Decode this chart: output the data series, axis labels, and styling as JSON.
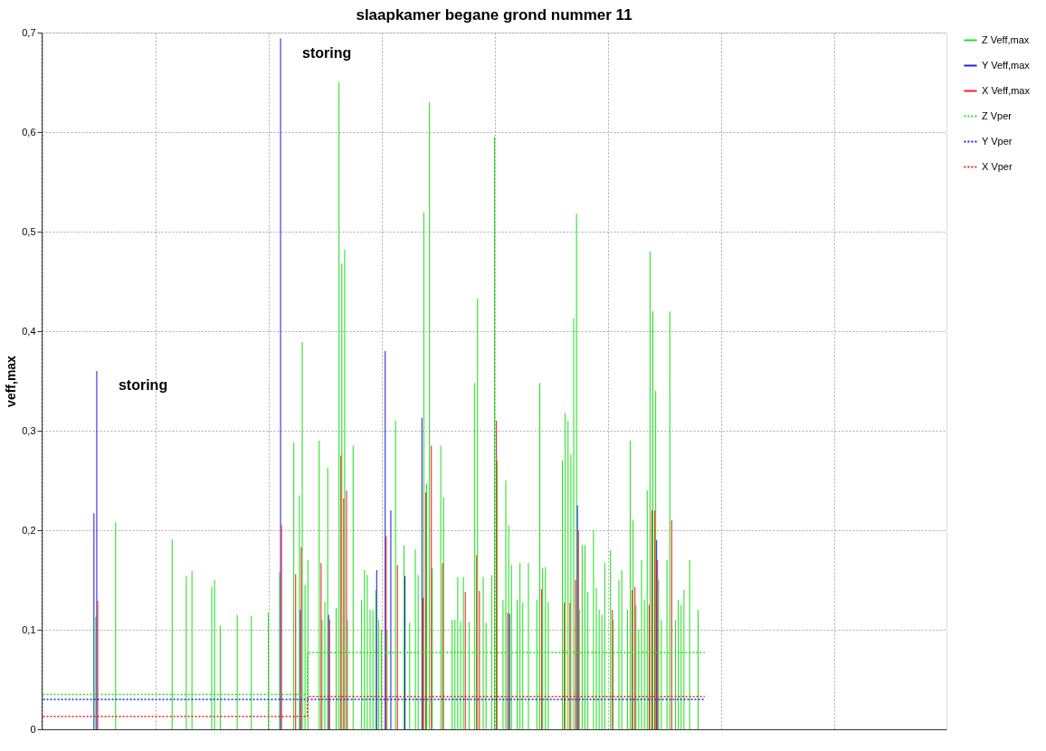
{
  "chart_data": {
    "type": "bar",
    "title": "slaapkamer begane grond nummer 11",
    "ylabel": "veff,max",
    "categories": [
      null,
      null,
      null,
      null,
      null,
      null,
      null,
      null,
      null,
      null,
      null,
      null,
      null,
      null,
      null,
      null,
      null,
      null,
      null,
      null,
      null,
      null,
      null,
      null,
      null,
      null,
      null,
      null,
      null,
      null,
      null,
      null,
      null,
      null,
      null,
      null,
      null,
      null,
      null,
      null,
      null,
      null,
      null,
      null,
      null,
      null,
      null,
      null,
      null,
      null,
      null,
      null,
      null,
      null,
      null,
      null,
      null,
      null,
      null,
      null,
      null,
      null,
      null,
      null,
      null,
      null,
      null,
      null,
      null,
      null,
      null,
      null,
      null,
      null,
      null,
      null,
      null,
      null,
      null,
      null,
      null,
      null,
      null,
      null,
      null,
      null,
      null,
      null,
      null,
      null,
      null,
      null,
      null,
      null,
      null,
      null,
      null,
      null,
      null,
      null,
      null,
      null,
      null,
      null,
      null,
      null,
      null,
      null,
      null,
      null,
      null,
      null,
      null,
      null,
      null,
      null,
      null,
      null,
      null,
      null,
      null,
      null,
      null,
      null,
      null,
      null,
      null,
      null,
      null,
      null,
      null,
      null,
      null,
      null,
      null,
      null,
      null,
      null,
      null,
      null,
      null,
      null,
      null,
      null,
      null,
      null,
      null,
      null,
      null,
      null,
      null,
      null,
      null,
      null,
      null,
      null,
      null,
      null,
      null,
      null,
      null,
      null,
      null,
      null,
      null,
      null,
      null,
      null,
      null,
      null,
      null,
      null,
      null,
      null,
      null,
      null,
      null,
      null,
      null,
      null,
      null,
      null,
      null,
      null,
      null,
      null,
      null,
      null,
      null,
      null,
      null,
      null,
      null,
      null,
      null,
      null,
      null,
      null,
      null,
      null,
      null,
      null,
      null,
      null,
      null,
      null,
      null,
      null,
      null,
      null,
      null,
      null,
      null,
      null,
      null,
      null,
      null,
      null,
      null,
      null,
      null,
      null,
      null,
      null,
      null,
      null,
      null,
      null,
      null,
      null,
      null,
      null,
      null,
      null,
      null,
      null,
      null,
      null,
      null,
      null,
      null,
      null,
      null,
      null,
      null,
      null,
      null,
      null,
      null,
      null,
      null,
      null,
      null,
      null,
      null,
      null,
      null,
      null,
      null,
      null,
      null,
      null,
      null,
      null,
      null,
      null,
      null,
      null,
      null,
      null,
      null,
      null,
      null,
      null,
      null,
      null,
      null,
      null,
      null,
      null,
      null,
      null,
      null,
      null,
      null,
      null,
      null,
      null,
      null,
      null,
      null,
      null,
      null,
      null,
      null,
      null,
      null,
      null,
      null,
      null,
      null,
      null,
      null,
      null,
      null,
      null,
      null,
      null,
      null,
      null,
      null,
      null,
      null,
      null,
      null,
      null,
      null,
      null,
      null,
      null
    ],
    "series": [
      {
        "name": "Z Veff,max",
        "color": "#22e022",
        "values": [
          null,
          null,
          null,
          null,
          null,
          null,
          null,
          null,
          null,
          null,
          null,
          null,
          null,
          null,
          null,
          null,
          null,
          null,
          null,
          0.113,
          null,
          null,
          null,
          null,
          null,
          null,
          0.208,
          null,
          null,
          null,
          null,
          null,
          null,
          null,
          null,
          null,
          null,
          null,
          null,
          null,
          null,
          null,
          null,
          null,
          null,
          null,
          0.191,
          null,
          null,
          null,
          null,
          0.154,
          null,
          0.159,
          null,
          null,
          null,
          null,
          null,
          null,
          0.143,
          0.15,
          null,
          0.104,
          null,
          null,
          null,
          null,
          null,
          0.115,
          null,
          null,
          null,
          null,
          0.114,
          null,
          null,
          null,
          null,
          null,
          0.117,
          null,
          null,
          null,
          0.158,
          null,
          null,
          null,
          null,
          0.288,
          null,
          0.235,
          0.389,
          0.145,
          0.17,
          null,
          null,
          null,
          0.29,
          0.11,
          0.128,
          0.263,
          null,
          null,
          0.122,
          0.65,
          0.468,
          0.482,
          0.11,
          null,
          0.285,
          null,
          null,
          0.13,
          0.16,
          0.155,
          0.12,
          0.12,
          0.14,
          0.11,
          0.1,
          null,
          0.1,
          null,
          null,
          0.31,
          null,
          null,
          0.185,
          null,
          0.107,
          null,
          0.181,
          0.155,
          null,
          0.519,
          0.247,
          0.63,
          0.162,
          null,
          null,
          0.285,
          0.233,
          null,
          null,
          0.11,
          0.11,
          0.153,
          0.108,
          0.153,
          null,
          0.108,
          null,
          0.348,
          0.433,
          null,
          0.153,
          0.107,
          null,
          0.155,
          0.595,
          0.27,
          null,
          0.13,
          0.25,
          0.205,
          0.165,
          null,
          0.13,
          0.167,
          0.127,
          null,
          0.167,
          null,
          null,
          0.13,
          0.348,
          0.162,
          0.163,
          0.128,
          null,
          null,
          null,
          null,
          0.27,
          0.318,
          0.31,
          0.276,
          0.413,
          0.518,
          0.12,
          0.185,
          0.185,
          0.138,
          null,
          0.2,
          0.142,
          0.12,
          0.115,
          0.167,
          null,
          0.18,
          0.11,
          null,
          0.15,
          0.16,
          null,
          0.12,
          0.29,
          0.21,
          0.125,
          0.1,
          0.17,
          0.13,
          0.24,
          0.48,
          0.42,
          0.34,
          0.15,
          0.11,
          null,
          0.17,
          0.42,
          null,
          0.11,
          0.13,
          0.125,
          0.14,
          null,
          0.17,
          null,
          null,
          0.12,
          null,
          null,
          null,
          null,
          null,
          null,
          null,
          null,
          null,
          null,
          null,
          null,
          null,
          null,
          null,
          null,
          null,
          null,
          null,
          null,
          null,
          null,
          null,
          null,
          null,
          null,
          null,
          null,
          null,
          null,
          null,
          null,
          null,
          null,
          null,
          null,
          null,
          null,
          null,
          null,
          null,
          null,
          null,
          null,
          null,
          null,
          null,
          null,
          null,
          null,
          null,
          null,
          null,
          null,
          null,
          null,
          null,
          null,
          null,
          null,
          null,
          null,
          null,
          null,
          null,
          null,
          null,
          null,
          null,
          null,
          null,
          null,
          null,
          null,
          null,
          null,
          null,
          null,
          null,
          null,
          null,
          null,
          null,
          null,
          null,
          null,
          null
        ]
      },
      {
        "name": "Y Veff,max",
        "color": "#2222dd",
        "values": [
          null,
          null,
          null,
          null,
          null,
          null,
          null,
          null,
          null,
          null,
          null,
          null,
          null,
          null,
          null,
          null,
          null,
          null,
          0.217,
          0.36,
          null,
          null,
          null,
          null,
          null,
          null,
          null,
          null,
          null,
          null,
          null,
          null,
          null,
          null,
          null,
          null,
          null,
          null,
          null,
          null,
          null,
          null,
          null,
          null,
          null,
          null,
          null,
          null,
          null,
          null,
          null,
          null,
          null,
          null,
          null,
          null,
          null,
          null,
          null,
          null,
          null,
          null,
          null,
          null,
          null,
          null,
          null,
          null,
          null,
          null,
          null,
          null,
          null,
          null,
          null,
          null,
          null,
          null,
          null,
          null,
          null,
          null,
          null,
          null,
          0.694,
          null,
          null,
          null,
          null,
          null,
          null,
          0.12,
          null,
          null,
          null,
          null,
          null,
          null,
          null,
          null,
          null,
          0.115,
          null,
          null,
          null,
          null,
          null,
          null,
          null,
          null,
          null,
          null,
          null,
          null,
          null,
          null,
          null,
          null,
          0.16,
          null,
          null,
          0.38,
          null,
          0.22,
          null,
          null,
          null,
          null,
          0.154,
          null,
          null,
          null,
          null,
          null,
          0.313,
          null,
          null,
          null,
          null,
          null,
          null,
          null,
          null,
          null,
          null,
          null,
          null,
          null,
          null,
          null,
          null,
          null,
          null,
          null,
          null,
          null,
          null,
          null,
          null,
          null,
          null,
          null,
          null,
          null,
          null,
          0.116,
          null,
          null,
          null,
          null,
          null,
          null,
          null,
          null,
          null,
          null,
          null,
          null,
          null,
          null,
          null,
          null,
          null,
          null,
          null,
          null,
          null,
          null,
          null,
          0.225,
          null,
          null,
          null,
          null,
          null,
          null,
          null,
          null,
          null,
          null,
          null,
          null,
          null,
          null,
          null,
          null,
          null,
          null,
          null,
          null,
          null,
          null,
          null,
          null,
          null,
          null,
          null,
          0.19,
          null,
          null,
          null,
          null,
          null,
          null,
          null,
          null,
          null,
          null,
          null,
          null,
          null,
          null,
          null,
          null,
          null,
          null,
          null,
          null,
          null,
          null,
          null,
          null,
          null,
          null,
          null,
          null,
          null,
          null,
          null,
          null,
          null,
          null,
          null,
          null,
          null,
          null,
          null,
          null,
          null,
          null,
          null,
          null,
          null,
          null,
          null,
          null,
          null,
          null,
          null,
          null,
          null,
          null,
          null,
          null,
          null,
          null,
          null,
          null,
          null,
          null,
          null,
          null,
          null,
          null,
          null,
          null,
          null,
          null,
          null,
          null,
          null,
          null,
          null,
          null,
          null,
          null,
          null,
          null,
          null,
          null,
          null,
          null,
          null,
          null,
          null,
          null,
          null,
          null,
          null,
          null,
          null,
          null,
          null,
          null,
          null,
          null,
          null,
          null,
          null,
          null
        ]
      },
      {
        "name": "X Veff,max",
        "color": "#ee2222",
        "values": [
          null,
          null,
          null,
          null,
          null,
          null,
          null,
          null,
          null,
          null,
          null,
          null,
          null,
          null,
          null,
          null,
          null,
          null,
          null,
          0.129,
          null,
          null,
          null,
          null,
          null,
          null,
          null,
          null,
          null,
          null,
          null,
          null,
          null,
          null,
          null,
          null,
          null,
          null,
          null,
          null,
          null,
          null,
          null,
          null,
          null,
          null,
          null,
          null,
          null,
          null,
          null,
          null,
          null,
          null,
          null,
          null,
          null,
          null,
          null,
          null,
          null,
          null,
          null,
          null,
          null,
          null,
          null,
          null,
          null,
          null,
          null,
          null,
          null,
          null,
          null,
          null,
          null,
          null,
          null,
          null,
          null,
          null,
          null,
          null,
          0.205,
          null,
          null,
          null,
          null,
          0.156,
          null,
          0.183,
          null,
          null,
          null,
          null,
          null,
          null,
          0.167,
          null,
          null,
          0.11,
          null,
          null,
          null,
          0.275,
          0.232,
          0.24,
          null,
          null,
          null,
          null,
          null,
          null,
          null,
          null,
          null,
          null,
          null,
          null,
          null,
          0.194,
          null,
          null,
          null,
          0.165,
          null,
          null,
          null,
          null,
          null,
          null,
          null,
          null,
          0.132,
          0.238,
          null,
          0.285,
          null,
          null,
          null,
          0.167,
          null,
          null,
          null,
          null,
          null,
          null,
          null,
          0.138,
          null,
          null,
          null,
          0.175,
          0.139,
          null,
          null,
          null,
          null,
          null,
          0.31,
          null,
          null,
          null,
          0.117,
          null,
          null,
          null,
          null,
          null,
          null,
          null,
          null,
          null,
          null,
          null,
          0.141,
          null,
          null,
          null,
          null,
          null,
          null,
          null,
          0.127,
          null,
          0.127,
          null,
          0.15,
          0.2,
          null,
          null,
          null,
          null,
          null,
          null,
          null,
          null,
          null,
          null,
          null,
          0.12,
          null,
          null,
          null,
          null,
          null,
          null,
          0.14,
          0.143,
          null,
          null,
          null,
          null,
          0.125,
          0.22,
          0.22,
          0.17,
          null,
          null,
          null,
          null,
          0.21,
          null,
          null,
          null,
          null,
          null,
          null,
          null,
          null,
          null,
          null,
          null,
          null,
          null,
          null,
          null,
          null,
          null,
          null,
          null,
          null,
          null,
          null,
          null,
          null,
          null,
          null,
          null,
          null,
          null,
          null,
          null,
          null,
          null,
          null,
          null,
          null,
          null,
          null,
          null,
          null,
          null,
          null,
          null,
          null,
          null,
          null,
          null,
          null,
          null,
          null,
          null,
          null,
          null,
          null,
          null,
          null,
          null,
          null,
          null,
          null,
          null,
          null,
          null,
          null,
          null,
          null,
          null,
          null,
          null,
          null,
          null,
          null,
          null,
          null,
          null,
          null,
          null,
          null,
          null,
          null,
          null,
          null,
          null,
          null,
          null,
          null,
          null,
          null,
          null,
          null,
          null,
          null,
          null,
          null,
          null,
          null,
          null
        ]
      },
      {
        "name": "Z Vper",
        "color": "#22e022",
        "type": "step",
        "line_style": "dotted",
        "values": [
          0.035,
          0.035,
          0.035,
          0.035,
          0.035,
          0.035,
          0.035,
          0.035,
          0.035,
          0.035,
          0.035,
          0.035,
          0.035,
          0.035,
          0.035,
          0.035,
          0.035,
          0.035,
          0.035,
          0.035,
          0.035,
          0.035,
          0.035,
          0.035,
          0.035,
          0.035,
          0.035,
          0.035,
          0.035,
          0.035,
          0.035,
          0.035,
          0.035,
          0.035,
          0.035,
          0.035,
          0.035,
          0.035,
          0.035,
          0.035,
          0.035,
          0.035,
          0.035,
          0.035,
          0.035,
          0.035,
          0.035,
          0.035,
          0.035,
          0.035,
          0.035,
          0.035,
          0.035,
          0.035,
          0.035,
          0.035,
          0.035,
          0.035,
          0.035,
          0.035,
          0.035,
          0.035,
          0.035,
          0.035,
          0.035,
          0.035,
          0.035,
          0.035,
          0.035,
          0.035,
          0.035,
          0.035,
          0.035,
          0.035,
          0.035,
          0.035,
          0.035,
          0.035,
          0.035,
          0.035,
          0.035,
          0.035,
          0.035,
          0.035,
          0.035,
          0.035,
          0.035,
          0.035,
          0.035,
          0.035,
          0.035,
          0.035,
          0.035,
          0.035,
          0.077,
          0.077,
          0.077,
          0.077,
          0.077,
          0.077,
          0.077,
          0.077,
          0.077,
          0.077,
          0.077,
          0.077,
          0.077,
          0.077,
          0.077,
          0.077,
          0.077,
          0.077,
          0.077,
          0.077,
          0.077,
          0.077,
          0.077,
          0.077,
          0.077,
          0.077,
          0.077,
          0.077,
          0.077,
          0.077,
          0.077,
          0.077,
          0.077,
          0.077,
          0.077,
          0.077,
          0.077,
          0.077,
          0.077,
          0.077,
          0.077,
          0.077,
          0.077,
          0.077,
          0.077,
          0.077,
          0.077,
          0.077,
          0.077,
          0.077,
          0.077,
          0.077,
          0.077,
          0.077,
          0.077,
          0.077,
          0.077,
          0.077,
          0.077,
          0.077,
          0.077,
          0.077,
          0.077,
          0.077,
          0.077,
          0.077,
          0.077,
          0.077,
          0.077,
          0.077,
          0.077,
          0.077,
          0.077,
          0.077,
          0.077,
          0.077,
          0.077,
          0.077,
          0.077,
          0.077,
          0.077,
          0.077,
          0.077,
          0.077,
          0.077,
          0.077,
          0.077,
          0.077,
          0.077,
          0.077,
          0.077,
          0.077,
          0.077,
          0.077,
          0.077,
          0.077,
          0.077,
          0.077,
          0.077,
          0.077,
          0.077,
          0.077,
          0.077,
          0.077,
          0.077,
          0.077,
          0.077,
          0.077,
          0.077,
          0.077,
          0.077,
          0.077,
          0.077,
          0.077,
          0.077,
          0.077,
          0.077,
          0.077,
          0.077,
          0.077,
          0.077,
          0.077,
          0.077,
          0.077,
          0.077,
          0.077,
          0.077,
          0.077,
          0.077,
          0.077,
          0.077,
          0.077,
          0.077,
          0.077,
          0.077,
          0.077,
          0.077,
          0.077,
          0.077,
          0.077,
          0.077,
          null,
          null,
          null,
          null,
          null,
          null,
          null,
          null,
          null,
          null,
          null,
          null,
          null,
          null,
          null,
          null,
          null,
          null,
          null,
          null,
          null,
          null,
          null,
          null,
          null,
          null,
          null,
          null,
          null,
          null,
          null,
          null,
          null,
          null,
          null,
          null,
          null,
          null,
          null,
          null,
          null,
          null,
          null,
          null,
          null,
          null,
          null,
          null,
          null,
          null,
          null,
          null,
          null,
          null,
          null,
          null,
          null,
          null,
          null,
          null,
          null,
          null,
          null,
          null,
          null,
          null,
          null,
          null,
          null,
          null,
          null,
          null,
          null,
          null,
          null,
          null,
          null,
          null,
          null,
          null,
          null,
          null,
          null,
          null,
          null
        ]
      },
      {
        "name": "Y Vper",
        "color": "#2222dd",
        "type": "step",
        "line_style": "dotted",
        "values": [
          0.03,
          0.03,
          0.03,
          0.03,
          0.03,
          0.03,
          0.03,
          0.03,
          0.03,
          0.03,
          0.03,
          0.03,
          0.03,
          0.03,
          0.03,
          0.03,
          0.03,
          0.03,
          0.03,
          0.03,
          0.03,
          0.03,
          0.03,
          0.03,
          0.03,
          0.03,
          0.03,
          0.03,
          0.03,
          0.03,
          0.03,
          0.03,
          0.03,
          0.03,
          0.03,
          0.03,
          0.03,
          0.03,
          0.03,
          0.03,
          0.03,
          0.03,
          0.03,
          0.03,
          0.03,
          0.03,
          0.03,
          0.03,
          0.03,
          0.03,
          0.03,
          0.03,
          0.03,
          0.03,
          0.03,
          0.03,
          0.03,
          0.03,
          0.03,
          0.03,
          0.03,
          0.03,
          0.03,
          0.03,
          0.03,
          0.03,
          0.03,
          0.03,
          0.03,
          0.03,
          0.03,
          0.03,
          0.03,
          0.03,
          0.03,
          0.03,
          0.03,
          0.03,
          0.03,
          0.03,
          0.03,
          0.03,
          0.03,
          0.03,
          0.03,
          0.03,
          0.03,
          0.03,
          0.03,
          0.03,
          0.03,
          0.03,
          0.03,
          0.03,
          0.03,
          0.03,
          0.03,
          0.03,
          0.03,
          0.03,
          0.03,
          0.03,
          0.03,
          0.03,
          0.03,
          0.03,
          0.03,
          0.03,
          0.03,
          0.03,
          0.03,
          0.03,
          0.03,
          0.03,
          0.03,
          0.03,
          0.03,
          0.03,
          0.03,
          0.03,
          0.03,
          0.03,
          0.03,
          0.03,
          0.03,
          0.03,
          0.03,
          0.03,
          0.03,
          0.03,
          0.03,
          0.03,
          0.03,
          0.03,
          0.03,
          0.03,
          0.03,
          0.03,
          0.03,
          0.03,
          0.03,
          0.03,
          0.03,
          0.03,
          0.03,
          0.03,
          0.03,
          0.03,
          0.03,
          0.03,
          0.03,
          0.03,
          0.03,
          0.03,
          0.03,
          0.03,
          0.03,
          0.03,
          0.03,
          0.03,
          0.03,
          0.03,
          0.03,
          0.03,
          0.03,
          0.03,
          0.03,
          0.03,
          0.03,
          0.03,
          0.03,
          0.03,
          0.03,
          0.03,
          0.03,
          0.03,
          0.03,
          0.03,
          0.03,
          0.03,
          0.03,
          0.03,
          0.03,
          0.03,
          0.03,
          0.03,
          0.03,
          0.03,
          0.03,
          0.03,
          0.03,
          0.03,
          0.03,
          0.03,
          0.03,
          0.03,
          0.03,
          0.03,
          0.03,
          0.03,
          0.03,
          0.03,
          0.03,
          0.03,
          0.03,
          0.03,
          0.03,
          0.03,
          0.03,
          0.03,
          0.03,
          0.03,
          0.03,
          0.03,
          0.03,
          0.03,
          0.03,
          0.03,
          0.03,
          0.03,
          0.03,
          0.03,
          0.03,
          0.03,
          0.03,
          0.03,
          0.03,
          0.03,
          0.03,
          0.03,
          0.03,
          0.03,
          0.03,
          0.03,
          0.03,
          null,
          null,
          null,
          null,
          null,
          null,
          null,
          null,
          null,
          null,
          null,
          null,
          null,
          null,
          null,
          null,
          null,
          null,
          null,
          null,
          null,
          null,
          null,
          null,
          null,
          null,
          null,
          null,
          null,
          null,
          null,
          null,
          null,
          null,
          null,
          null,
          null,
          null,
          null,
          null,
          null,
          null,
          null,
          null,
          null,
          null,
          null,
          null,
          null,
          null,
          null,
          null,
          null,
          null,
          null,
          null,
          null,
          null,
          null,
          null,
          null,
          null,
          null,
          null,
          null,
          null,
          null,
          null,
          null,
          null,
          null,
          null,
          null,
          null,
          null,
          null,
          null,
          null,
          null,
          null,
          null,
          null,
          null,
          null,
          null
        ]
      },
      {
        "name": "X Vper",
        "color": "#ee2222",
        "type": "step",
        "line_style": "dotted",
        "values": [
          0.013,
          0.013,
          0.013,
          0.013,
          0.013,
          0.013,
          0.013,
          0.013,
          0.013,
          0.013,
          0.013,
          0.013,
          0.013,
          0.013,
          0.013,
          0.013,
          0.013,
          0.013,
          0.013,
          0.013,
          0.013,
          0.013,
          0.013,
          0.013,
          0.013,
          0.013,
          0.013,
          0.013,
          0.013,
          0.013,
          0.013,
          0.013,
          0.013,
          0.013,
          0.013,
          0.013,
          0.013,
          0.013,
          0.013,
          0.013,
          0.013,
          0.013,
          0.013,
          0.013,
          0.013,
          0.013,
          0.013,
          0.013,
          0.013,
          0.013,
          0.013,
          0.013,
          0.013,
          0.013,
          0.013,
          0.013,
          0.013,
          0.013,
          0.013,
          0.013,
          0.013,
          0.013,
          0.013,
          0.013,
          0.013,
          0.013,
          0.013,
          0.013,
          0.013,
          0.013,
          0.013,
          0.013,
          0.013,
          0.013,
          0.013,
          0.013,
          0.013,
          0.013,
          0.013,
          0.013,
          0.013,
          0.013,
          0.013,
          0.013,
          0.013,
          0.013,
          0.013,
          0.013,
          0.013,
          0.013,
          0.013,
          0.013,
          0.013,
          0.013,
          0.033,
          0.033,
          0.033,
          0.033,
          0.033,
          0.033,
          0.033,
          0.033,
          0.033,
          0.033,
          0.033,
          0.033,
          0.033,
          0.033,
          0.033,
          0.033,
          0.033,
          0.033,
          0.033,
          0.033,
          0.033,
          0.033,
          0.033,
          0.033,
          0.033,
          0.033,
          0.033,
          0.033,
          0.033,
          0.033,
          0.033,
          0.033,
          0.033,
          0.033,
          0.033,
          0.033,
          0.033,
          0.033,
          0.033,
          0.033,
          0.033,
          0.033,
          0.033,
          0.033,
          0.033,
          0.033,
          0.033,
          0.033,
          0.033,
          0.033,
          0.033,
          0.033,
          0.033,
          0.033,
          0.033,
          0.033,
          0.033,
          0.033,
          0.033,
          0.033,
          0.033,
          0.033,
          0.033,
          0.033,
          0.033,
          0.033,
          0.033,
          0.033,
          0.033,
          0.033,
          0.033,
          0.033,
          0.033,
          0.033,
          0.033,
          0.033,
          0.033,
          0.033,
          0.033,
          0.033,
          0.033,
          0.033,
          0.033,
          0.033,
          0.033,
          0.033,
          0.033,
          0.033,
          0.033,
          0.033,
          0.033,
          0.033,
          0.033,
          0.033,
          0.033,
          0.033,
          0.033,
          0.033,
          0.033,
          0.033,
          0.033,
          0.033,
          0.033,
          0.033,
          0.033,
          0.033,
          0.033,
          0.033,
          0.033,
          0.033,
          0.033,
          0.033,
          0.033,
          0.033,
          0.033,
          0.033,
          0.033,
          0.033,
          0.033,
          0.033,
          0.033,
          0.033,
          0.033,
          0.033,
          0.033,
          0.033,
          0.033,
          0.033,
          0.033,
          0.033,
          0.033,
          0.033,
          0.033,
          0.033,
          0.033,
          0.033,
          0.033,
          0.033,
          0.033,
          0.033,
          0.033,
          null,
          null,
          null,
          null,
          null,
          null,
          null,
          null,
          null,
          null,
          null,
          null,
          null,
          null,
          null,
          null,
          null,
          null,
          null,
          null,
          null,
          null,
          null,
          null,
          null,
          null,
          null,
          null,
          null,
          null,
          null,
          null,
          null,
          null,
          null,
          null,
          null,
          null,
          null,
          null,
          null,
          null,
          null,
          null,
          null,
          null,
          null,
          null,
          null,
          null,
          null,
          null,
          null,
          null,
          null,
          null,
          null,
          null,
          null,
          null,
          null,
          null,
          null,
          null,
          null,
          null,
          null,
          null,
          null,
          null,
          null,
          null,
          null,
          null,
          null,
          null,
          null,
          null,
          null,
          null,
          null,
          null,
          null,
          null,
          null
        ]
      }
    ],
    "ylim": [
      0,
      0.7
    ],
    "yticks": [
      0,
      {
        "value": 0.1,
        "label": "0,1"
      },
      {
        "value": 0.2,
        "label": "0,2"
      },
      {
        "value": 0.3,
        "label": "0,3"
      },
      {
        "value": 0.4,
        "label": "0,4"
      },
      {
        "value": 0.5,
        "label": "0,5"
      },
      {
        "value": 0.6,
        "label": "0,6"
      },
      {
        "value": 0.7,
        "label": "0,7"
      }
    ],
    "tick_labels": "y",
    "grid": true,
    "legend": "top right",
    "annotations": [
      "storing",
      "storing"
    ]
  }
}
